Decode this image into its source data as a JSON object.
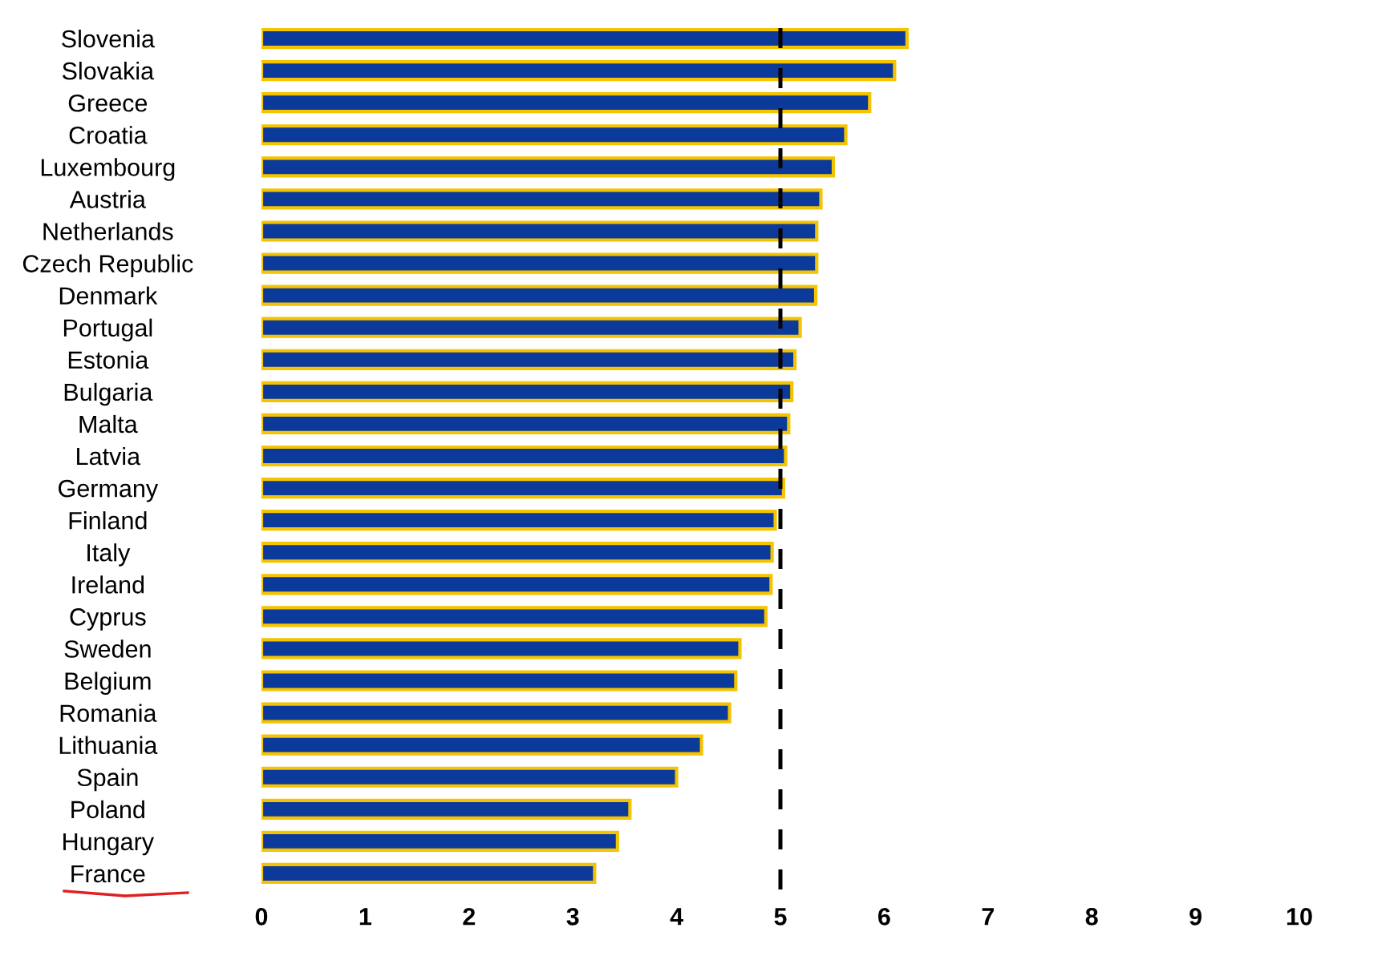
{
  "chart_data": {
    "type": "bar",
    "orientation": "horizontal",
    "categories": [
      "Slovenia",
      "Slovakia",
      "Greece",
      "Croatia",
      "Luxembourg",
      "Austria",
      "Netherlands",
      "Czech Republic",
      "Denmark",
      "Portugal",
      "Estonia",
      "Bulgaria",
      "Malta",
      "Latvia",
      "Germany",
      "Finland",
      "Italy",
      "Ireland",
      "Cyprus",
      "Sweden",
      "Belgium",
      "Romania",
      "Lithuania",
      "Spain",
      "Poland",
      "Hungary",
      "France"
    ],
    "values": [
      6.22,
      6.1,
      5.86,
      5.63,
      5.51,
      5.39,
      5.35,
      5.35,
      5.34,
      5.19,
      5.14,
      5.11,
      5.08,
      5.05,
      5.03,
      4.95,
      4.92,
      4.91,
      4.86,
      4.61,
      4.57,
      4.51,
      4.24,
      4.0,
      3.55,
      3.43,
      3.21
    ],
    "color": "#0b3a9a",
    "xlim": [
      0,
      10
    ],
    "xticks": [
      0,
      1,
      2,
      3,
      4,
      5,
      6,
      7,
      8,
      9,
      10
    ],
    "grid": false,
    "ref_lines": [
      {
        "axis": "x",
        "value": 5,
        "color": "#000000",
        "line_style": "dashed"
      }
    ]
  }
}
